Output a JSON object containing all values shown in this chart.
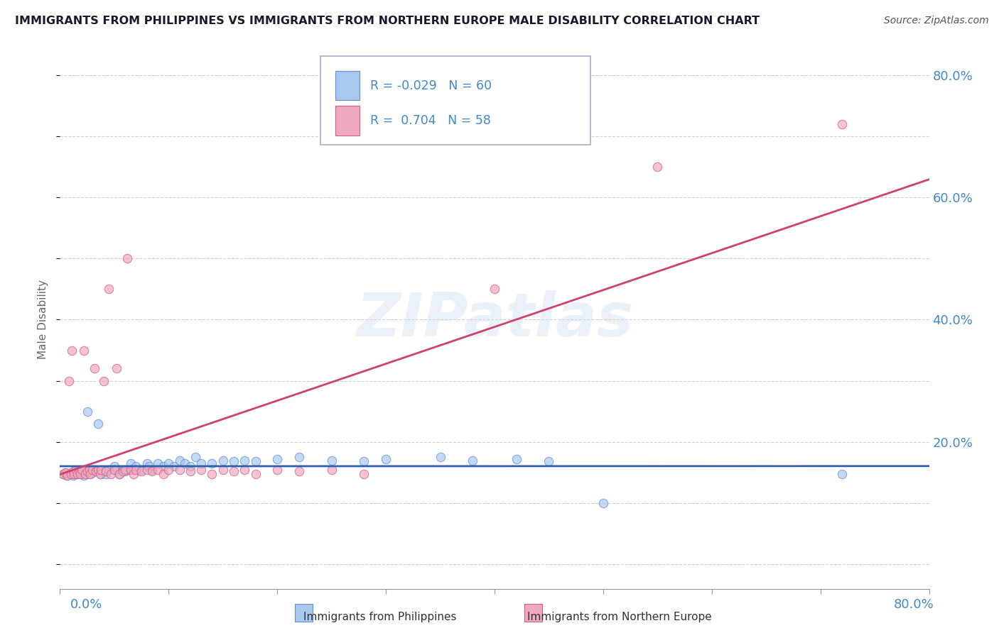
{
  "title": "IMMIGRANTS FROM PHILIPPINES VS IMMIGRANTS FROM NORTHERN EUROPE MALE DISABILITY CORRELATION CHART",
  "source": "Source: ZipAtlas.com",
  "ylabel": "Male Disability",
  "y_tick_labels": [
    "20.0%",
    "40.0%",
    "60.0%",
    "80.0%"
  ],
  "y_tick_values": [
    0.2,
    0.4,
    0.6,
    0.8
  ],
  "xlim": [
    0.0,
    0.8
  ],
  "ylim": [
    -0.04,
    0.84
  ],
  "series1_label": "Immigrants from Philippines",
  "series2_label": "Immigrants from Northern Europe",
  "series1_color": "#a8c8f0",
  "series2_color": "#f0a8c0",
  "series1_edge_color": "#6090d0",
  "series2_edge_color": "#d06080",
  "series1_line_color": "#3060b0",
  "series2_line_color": "#d04070",
  "R1": -0.029,
  "N1": 60,
  "R2": 0.704,
  "N2": 58,
  "watermark": "ZIPatlas",
  "background_color": "#ffffff",
  "grid_color": "#cccccc",
  "title_color": "#1a1a2e",
  "axis_label_color": "#4488cc",
  "series1_x": [
    0.003,
    0.005,
    0.006,
    0.008,
    0.01,
    0.012,
    0.013,
    0.015,
    0.016,
    0.018,
    0.02,
    0.022,
    0.025,
    0.025,
    0.027,
    0.03,
    0.032,
    0.035,
    0.038,
    0.04,
    0.042,
    0.045,
    0.05,
    0.052,
    0.055,
    0.058,
    0.06,
    0.063,
    0.065,
    0.068,
    0.07,
    0.075,
    0.08,
    0.082,
    0.085,
    0.09,
    0.095,
    0.1,
    0.105,
    0.11,
    0.115,
    0.12,
    0.125,
    0.13,
    0.14,
    0.15,
    0.16,
    0.17,
    0.18,
    0.2,
    0.22,
    0.25,
    0.28,
    0.3,
    0.35,
    0.38,
    0.42,
    0.45,
    0.5,
    0.72
  ],
  "series1_y": [
    0.148,
    0.15,
    0.145,
    0.148,
    0.15,
    0.145,
    0.148,
    0.152,
    0.148,
    0.15,
    0.148,
    0.145,
    0.152,
    0.25,
    0.148,
    0.15,
    0.155,
    0.23,
    0.148,
    0.152,
    0.148,
    0.155,
    0.16,
    0.155,
    0.148,
    0.155,
    0.152,
    0.155,
    0.165,
    0.155,
    0.16,
    0.155,
    0.165,
    0.16,
    0.155,
    0.165,
    0.16,
    0.165,
    0.16,
    0.17,
    0.165,
    0.16,
    0.175,
    0.165,
    0.165,
    0.17,
    0.168,
    0.17,
    0.168,
    0.172,
    0.175,
    0.17,
    0.168,
    0.172,
    0.175,
    0.17,
    0.172,
    0.168,
    0.1,
    0.148
  ],
  "series2_x": [
    0.003,
    0.005,
    0.007,
    0.008,
    0.01,
    0.011,
    0.012,
    0.013,
    0.015,
    0.016,
    0.018,
    0.019,
    0.02,
    0.022,
    0.023,
    0.025,
    0.027,
    0.028,
    0.03,
    0.032,
    0.033,
    0.035,
    0.037,
    0.038,
    0.04,
    0.042,
    0.045,
    0.047,
    0.05,
    0.052,
    0.055,
    0.058,
    0.06,
    0.062,
    0.065,
    0.068,
    0.07,
    0.075,
    0.08,
    0.085,
    0.09,
    0.095,
    0.1,
    0.11,
    0.12,
    0.13,
    0.14,
    0.15,
    0.16,
    0.17,
    0.18,
    0.2,
    0.22,
    0.25,
    0.28,
    0.4,
    0.55,
    0.72
  ],
  "series2_y": [
    0.148,
    0.15,
    0.145,
    0.3,
    0.148,
    0.35,
    0.152,
    0.148,
    0.155,
    0.148,
    0.152,
    0.148,
    0.155,
    0.35,
    0.148,
    0.152,
    0.155,
    0.148,
    0.155,
    0.32,
    0.152,
    0.155,
    0.148,
    0.155,
    0.3,
    0.152,
    0.45,
    0.148,
    0.155,
    0.32,
    0.148,
    0.152,
    0.155,
    0.5,
    0.155,
    0.148,
    0.155,
    0.152,
    0.155,
    0.152,
    0.155,
    0.148,
    0.155,
    0.155,
    0.152,
    0.155,
    0.148,
    0.155,
    0.152,
    0.155,
    0.148,
    0.155,
    0.152,
    0.155,
    0.148,
    0.45,
    0.65,
    0.72
  ]
}
